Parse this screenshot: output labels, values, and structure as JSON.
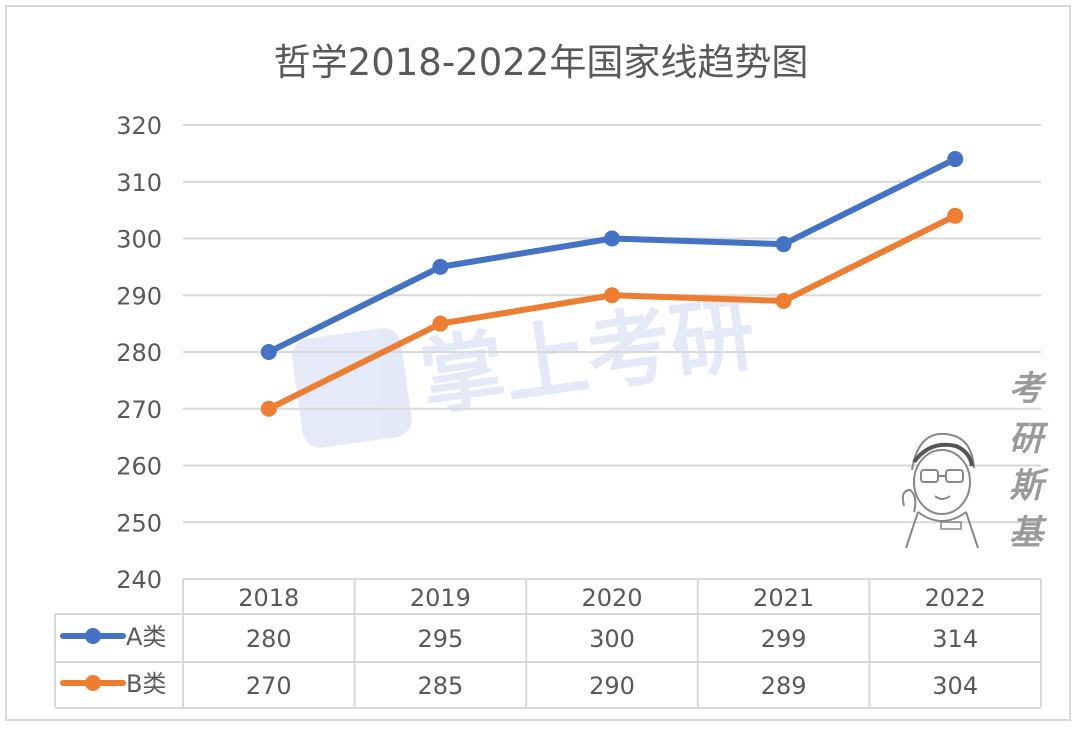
{
  "chart_data": {
    "type": "line",
    "title": "哲学2018-2022年国家线趋势图",
    "categories": [
      "2018",
      "2019",
      "2020",
      "2021",
      "2022"
    ],
    "series": [
      {
        "name": "A类",
        "values": [
          280,
          295,
          300,
          299,
          314
        ],
        "color": "#4472c4"
      },
      {
        "name": "B类",
        "values": [
          270,
          285,
          290,
          289,
          304
        ],
        "color": "#ed7d31"
      }
    ],
    "ylim": [
      240,
      320
    ],
    "yticks": [
      240,
      250,
      260,
      270,
      280,
      290,
      300,
      310,
      320
    ],
    "grid": true,
    "legend": "data-table-below"
  },
  "watermark": {
    "text": "掌上考研"
  },
  "signature": {
    "chars": [
      "考",
      "研",
      "斯",
      "基"
    ]
  }
}
